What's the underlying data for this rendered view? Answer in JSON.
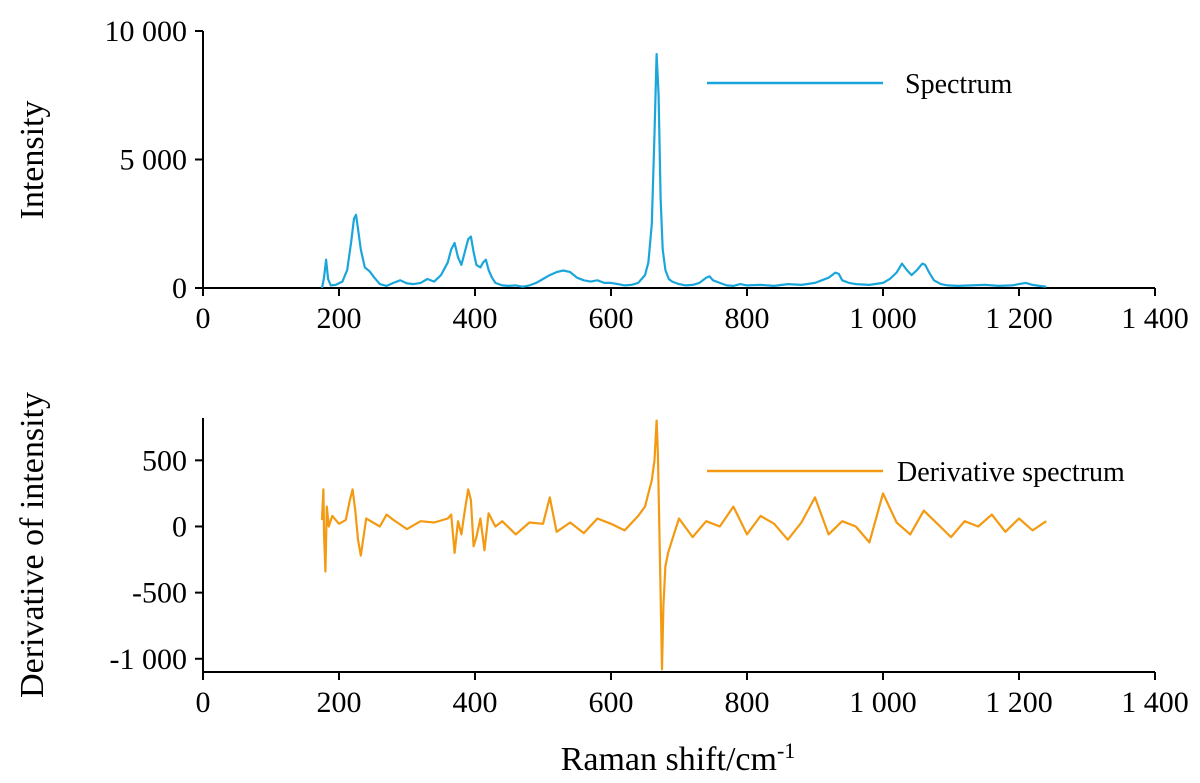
{
  "chart_data": [
    {
      "type": "line",
      "title": "",
      "xlabel": "",
      "ylabel": "Intensity",
      "xlim": [
        0,
        1400
      ],
      "ylim": [
        0,
        10000
      ],
      "xticks": [
        0,
        200,
        400,
        600,
        800,
        1000,
        1200,
        1400
      ],
      "xtick_labels": [
        "0",
        "200",
        "400",
        "600",
        "800",
        "1 000",
        "1 200",
        "1 400"
      ],
      "yticks": [
        0,
        5000,
        10000
      ],
      "ytick_labels": [
        "0",
        "5 000",
        "10 000"
      ],
      "grid": false,
      "legend": "top-right",
      "series": [
        {
          "name": "Spectrum",
          "color": "#1ba6db",
          "x": [
            175,
            178,
            181,
            184,
            188,
            195,
            205,
            212,
            218,
            222,
            225,
            228,
            232,
            238,
            245,
            252,
            260,
            270,
            280,
            290,
            300,
            310,
            320,
            330,
            340,
            350,
            360,
            365,
            370,
            375,
            380,
            385,
            390,
            394,
            398,
            402,
            408,
            412,
            416,
            420,
            425,
            430,
            440,
            450,
            460,
            470,
            480,
            490,
            500,
            510,
            520,
            530,
            540,
            550,
            560,
            570,
            580,
            590,
            600,
            610,
            620,
            630,
            640,
            650,
            655,
            660,
            664,
            667,
            670,
            673,
            676,
            680,
            685,
            690,
            700,
            710,
            720,
            730,
            740,
            745,
            750,
            760,
            770,
            780,
            790,
            800,
            820,
            840,
            860,
            880,
            900,
            910,
            920,
            930,
            935,
            940,
            950,
            960,
            980,
            1000,
            1010,
            1020,
            1028,
            1035,
            1042,
            1050,
            1058,
            1062,
            1068,
            1075,
            1085,
            1095,
            1110,
            1130,
            1150,
            1170,
            1190,
            1200,
            1210,
            1220,
            1230,
            1240
          ],
          "values": [
            0,
            400,
            1100,
            350,
            100,
            120,
            250,
            700,
            1800,
            2700,
            2850,
            2300,
            1500,
            800,
            650,
            400,
            150,
            80,
            200,
            300,
            180,
            150,
            200,
            350,
            250,
            500,
            1000,
            1500,
            1750,
            1200,
            900,
            1400,
            1900,
            2000,
            1400,
            900,
            800,
            1000,
            1100,
            700,
            400,
            200,
            100,
            80,
            100,
            50,
            100,
            200,
            350,
            500,
            620,
            680,
            620,
            400,
            300,
            250,
            300,
            200,
            200,
            150,
            100,
            120,
            200,
            500,
            1000,
            2500,
            6000,
            9100,
            7500,
            3500,
            1500,
            700,
            350,
            250,
            150,
            100,
            120,
            200,
            400,
            450,
            300,
            200,
            100,
            80,
            150,
            100,
            120,
            80,
            150,
            120,
            200,
            300,
            400,
            600,
            550,
            300,
            200,
            150,
            120,
            200,
            350,
            600,
            950,
            700,
            500,
            700,
            950,
            900,
            600,
            300,
            150,
            100,
            80,
            100,
            120,
            80,
            100,
            150,
            200,
            120,
            80,
            50
          ]
        }
      ]
    },
    {
      "type": "line",
      "title": "",
      "xlabel": "Raman shift/cm-1",
      "ylabel": "Derivative of intensity",
      "xlim": [
        0,
        1400
      ],
      "ylim": [
        -1100,
        820
      ],
      "xticks": [
        0,
        200,
        400,
        600,
        800,
        1000,
        1200,
        1400
      ],
      "xtick_labels": [
        "0",
        "200",
        "400",
        "600",
        "800",
        "1 000",
        "1 200",
        "1 400"
      ],
      "yticks": [
        -1000,
        -500,
        0,
        500
      ],
      "ytick_labels": [
        "-1 000",
        "-500",
        "0",
        "500"
      ],
      "grid": false,
      "legend": "top-right",
      "series": [
        {
          "name": "Derivative spectrum",
          "color": "#f39a12",
          "x": [
            175,
            177,
            178,
            180,
            182,
            185,
            190,
            200,
            210,
            216,
            220,
            224,
            228,
            232,
            240,
            250,
            260,
            270,
            280,
            300,
            320,
            340,
            360,
            365,
            370,
            375,
            380,
            385,
            390,
            394,
            398,
            402,
            408,
            414,
            420,
            430,
            440,
            460,
            480,
            500,
            510,
            520,
            540,
            560,
            580,
            600,
            620,
            640,
            650,
            655,
            660,
            664,
            667,
            669,
            671,
            673,
            675,
            677,
            680,
            684,
            690,
            700,
            720,
            740,
            760,
            780,
            800,
            820,
            840,
            860,
            880,
            900,
            920,
            940,
            960,
            980,
            1000,
            1020,
            1040,
            1060,
            1080,
            1100,
            1120,
            1140,
            1160,
            1180,
            1200,
            1220,
            1240
          ],
          "values": [
            50,
            280,
            -50,
            -340,
            150,
            0,
            80,
            20,
            50,
            200,
            280,
            120,
            -100,
            -220,
            60,
            30,
            0,
            90,
            50,
            -20,
            40,
            30,
            60,
            90,
            -200,
            40,
            -60,
            120,
            280,
            200,
            -150,
            -80,
            60,
            -180,
            100,
            0,
            40,
            -60,
            30,
            20,
            220,
            -40,
            30,
            -50,
            60,
            20,
            -30,
            80,
            150,
            250,
            350,
            500,
            800,
            550,
            0,
            -500,
            -1080,
            -600,
            -300,
            -200,
            -100,
            60,
            -80,
            40,
            0,
            150,
            -60,
            80,
            20,
            -100,
            30,
            220,
            -60,
            40,
            0,
            -120,
            250,
            30,
            -60,
            120,
            20,
            -80,
            40,
            0,
            90,
            -40,
            60,
            -30,
            40
          ]
        }
      ]
    }
  ]
}
